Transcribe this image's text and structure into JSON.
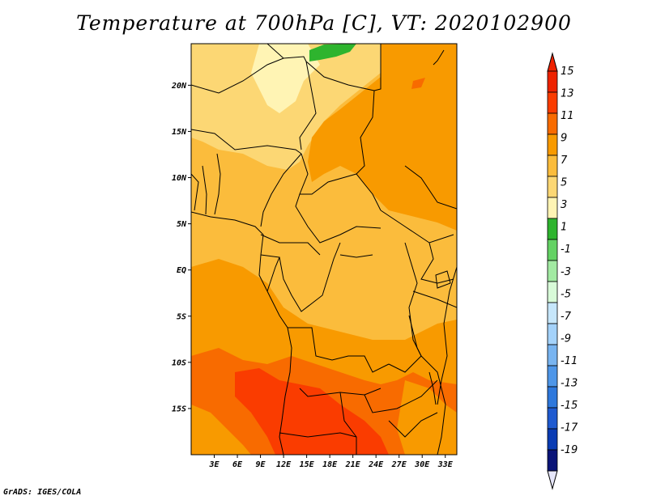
{
  "title": "Temperature at 700hPa [C], VT: 2020102900",
  "credit": "GrADS: IGES/COLA",
  "map": {
    "lon_range": [
      0,
      34.5
    ],
    "lat_range": [
      -20,
      24.5
    ],
    "lat_ticks": [
      {
        "value": 20,
        "label": "20N"
      },
      {
        "value": 15,
        "label": "15N"
      },
      {
        "value": 10,
        "label": "10N"
      },
      {
        "value": 5,
        "label": "5N"
      },
      {
        "value": 0,
        "label": "EQ"
      },
      {
        "value": -5,
        "label": "5S"
      },
      {
        "value": -10,
        "label": "10S"
      },
      {
        "value": -15,
        "label": "15S"
      }
    ],
    "lon_ticks": [
      {
        "value": 3,
        "label": "3E"
      },
      {
        "value": 6,
        "label": "6E"
      },
      {
        "value": 9,
        "label": "9E"
      },
      {
        "value": 12,
        "label": "12E"
      },
      {
        "value": 15,
        "label": "15E"
      },
      {
        "value": 18,
        "label": "18E"
      },
      {
        "value": 21,
        "label": "21E"
      },
      {
        "value": 24,
        "label": "24E"
      },
      {
        "value": 27,
        "label": "27E"
      },
      {
        "value": 30,
        "label": "30E"
      },
      {
        "value": 33,
        "label": "33E"
      }
    ]
  },
  "colorbar": {
    "labels": [
      "15",
      "13",
      "11",
      "9",
      "7",
      "5",
      "3",
      "1",
      "-1",
      "-3",
      "-5",
      "-7",
      "-9",
      "-11",
      "-13",
      "-15",
      "-17",
      "-19"
    ],
    "colors": [
      "#ee2200",
      "#fa3c00",
      "#f86b00",
      "#f89a00",
      "#fbbc3c",
      "#fcd774",
      "#fff4b4",
      "#2eb42e",
      "#64d264",
      "#a2eaa2",
      "#d8fad8",
      "#c6e6fa",
      "#a4d2fa",
      "#78b4f0",
      "#4e96e8",
      "#2e78dc",
      "#1e5ad0",
      "#0a3cb4",
      "#0a1478"
    ],
    "top_arrow_color": "#ee2200",
    "bottom_arrow_color": "#e6e6fa"
  },
  "field_colors": {
    "t5": "#fff4b4",
    "t7": "#fcd774",
    "t9": "#fbbc3c",
    "t11": "#f89a00",
    "t13": "#f86b00",
    "t15": "#fa3c00",
    "t1": "#2eb42e",
    "t3": "#64d264"
  }
}
